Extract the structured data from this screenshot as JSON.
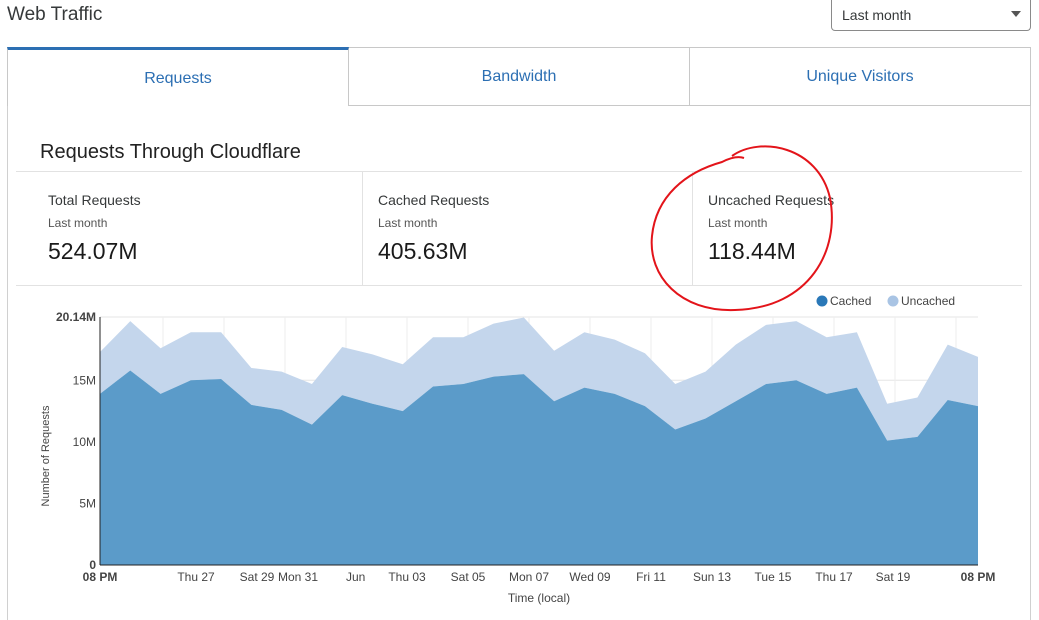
{
  "header": {
    "title": "Web Traffic",
    "range_value": "Last month"
  },
  "tabs": [
    {
      "label": "Requests",
      "active": true
    },
    {
      "label": "Bandwidth",
      "active": false
    },
    {
      "label": "Unique Visitors",
      "active": false
    }
  ],
  "section": {
    "title": "Requests Through Cloudflare"
  },
  "stats": [
    {
      "label": "Total Requests",
      "period": "Last month",
      "value": "524.07M"
    },
    {
      "label": "Cached Requests",
      "period": "Last month",
      "value": "405.63M"
    },
    {
      "label": "Uncached Requests",
      "period": "Last month",
      "value": "118.44M"
    }
  ],
  "colors": {
    "accent": "#2c6fb3",
    "cached": "#5b9bc9",
    "uncached": "#c4d6ec",
    "annotation": "#e3141a"
  },
  "chart_data": {
    "type": "area",
    "stacked": true,
    "xlabel": "Time (local)",
    "ylabel": "Number of Requests",
    "ylim": [
      0,
      20.14
    ],
    "y_unit": "M",
    "y_ticks": [
      "0",
      "5M",
      "10M",
      "15M",
      "20.14M"
    ],
    "x_tick_labels": [
      "08 PM",
      "Thu 27",
      "Sat 29",
      "Mon 31",
      "Jun",
      "Thu 03",
      "Sat 05",
      "Mon 07",
      "Wed 09",
      "Fri 11",
      "Sun 13",
      "Tue 15",
      "Thu 17",
      "Sat 19",
      "08 PM"
    ],
    "legend": [
      {
        "name": "Cached"
      },
      {
        "name": "Uncached"
      }
    ],
    "series": [
      {
        "name": "Cached",
        "values": [
          13.9,
          15.8,
          13.9,
          15.0,
          15.1,
          13.0,
          12.6,
          11.4,
          13.8,
          13.1,
          12.5,
          14.5,
          14.7,
          15.3,
          15.5,
          13.3,
          14.4,
          13.9,
          12.9,
          11.0,
          11.9,
          13.3,
          14.7,
          15.0,
          13.9,
          14.4,
          10.1,
          10.4,
          13.4,
          12.9
        ]
      },
      {
        "name": "Uncached",
        "values": [
          3.4,
          4.0,
          3.7,
          3.9,
          3.8,
          3.0,
          3.1,
          3.3,
          3.9,
          4.0,
          3.8,
          4.0,
          3.8,
          4.3,
          4.6,
          4.1,
          4.5,
          4.4,
          4.3,
          3.7,
          3.8,
          4.6,
          4.8,
          4.8,
          4.6,
          4.5,
          3.0,
          3.2,
          4.5,
          4.0
        ]
      }
    ]
  }
}
